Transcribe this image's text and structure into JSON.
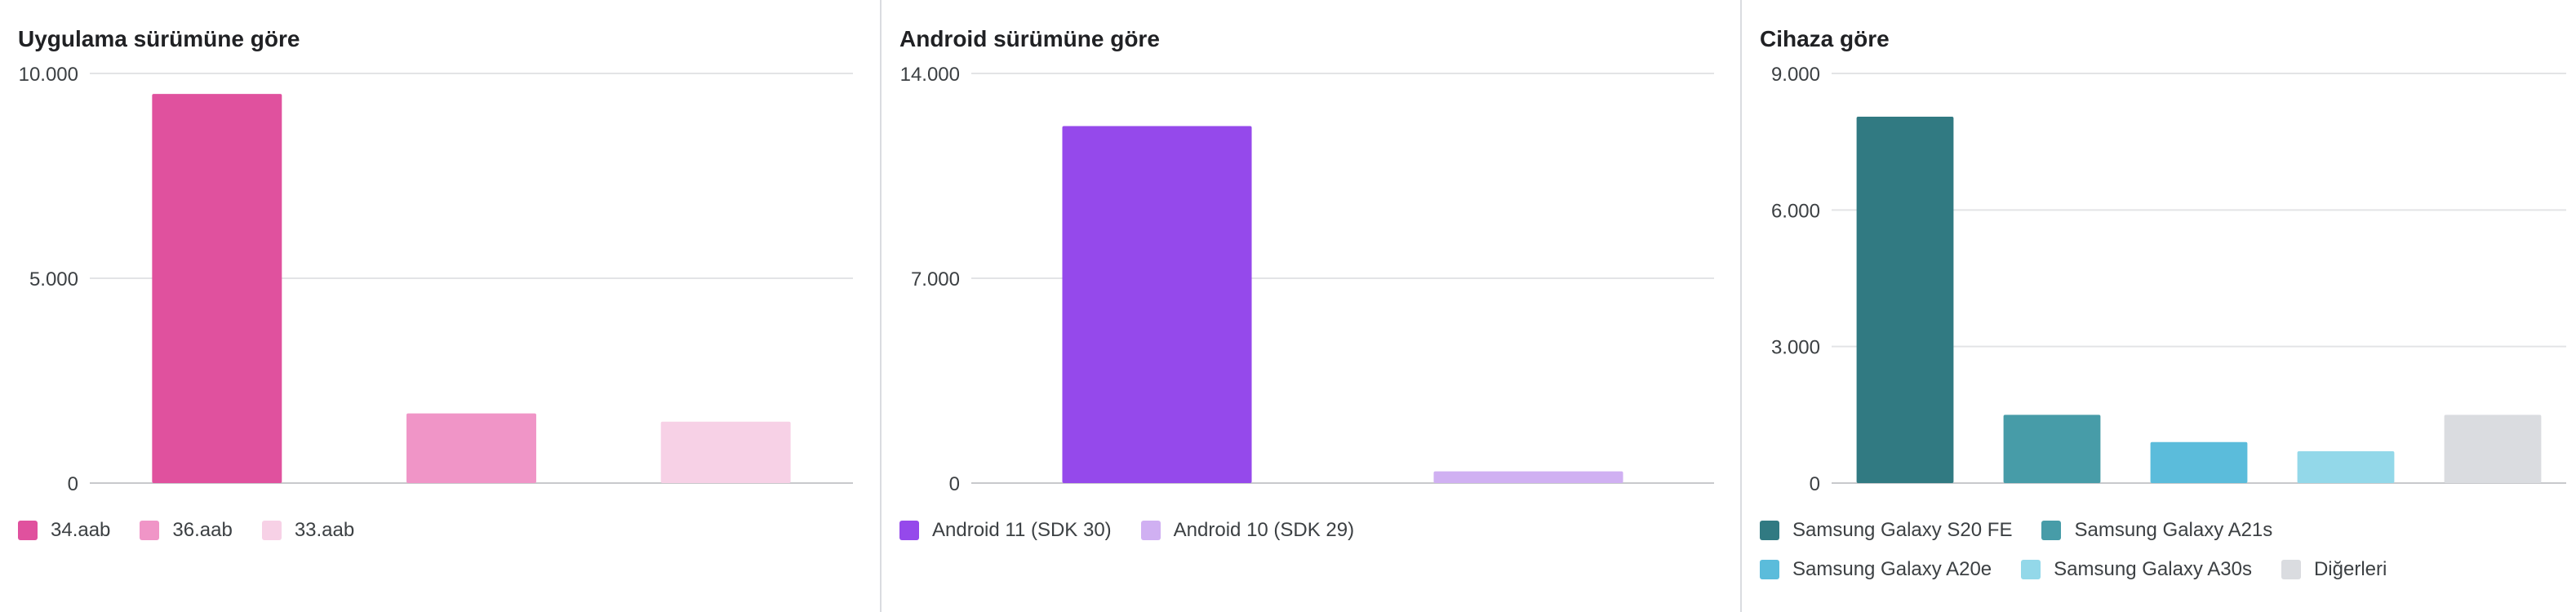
{
  "chart_data": [
    {
      "type": "bar",
      "title": "Uygulama sürümüne göre",
      "categories": [
        "34.aab",
        "36.aab",
        "33.aab"
      ],
      "values": [
        9500,
        1700,
        1500
      ],
      "colors": [
        "#e0519e",
        "#f095c7",
        "#f7d1e6"
      ],
      "ylim": [
        0,
        10000
      ],
      "yticks": [
        "0",
        "5.000",
        "10.000"
      ],
      "ytick_values": [
        0,
        5000,
        10000
      ],
      "grid": true,
      "legend": "bottom-left"
    },
    {
      "type": "bar",
      "title": "Android sürümüne göre",
      "categories": [
        "Android 11 (SDK 30)",
        "Android 10 (SDK 29)"
      ],
      "values": [
        12200,
        400
      ],
      "colors": [
        "#9549eb",
        "#d0b0f2"
      ],
      "ylim": [
        0,
        14000
      ],
      "yticks": [
        "0",
        "7.000",
        "14.000"
      ],
      "ytick_values": [
        0,
        7000,
        14000
      ],
      "grid": true,
      "legend": "bottom-left"
    },
    {
      "type": "bar",
      "title": "Cihaza göre",
      "categories": [
        "Samsung Galaxy S20 FE",
        "Samsung Galaxy A21s",
        "Samsung Galaxy A20e",
        "Samsung Galaxy A30s",
        "Diğerleri"
      ],
      "values": [
        8050,
        1500,
        900,
        700,
        1500
      ],
      "colors": [
        "#317a82",
        "#479ca8",
        "#5bbcdb",
        "#93d8e9",
        "#dadce0"
      ],
      "ylim": [
        0,
        9000
      ],
      "yticks": [
        "0",
        "3.000",
        "6.000",
        "9.000"
      ],
      "ytick_values": [
        0,
        3000,
        6000,
        9000
      ],
      "grid": true,
      "legend": "bottom-left"
    }
  ]
}
